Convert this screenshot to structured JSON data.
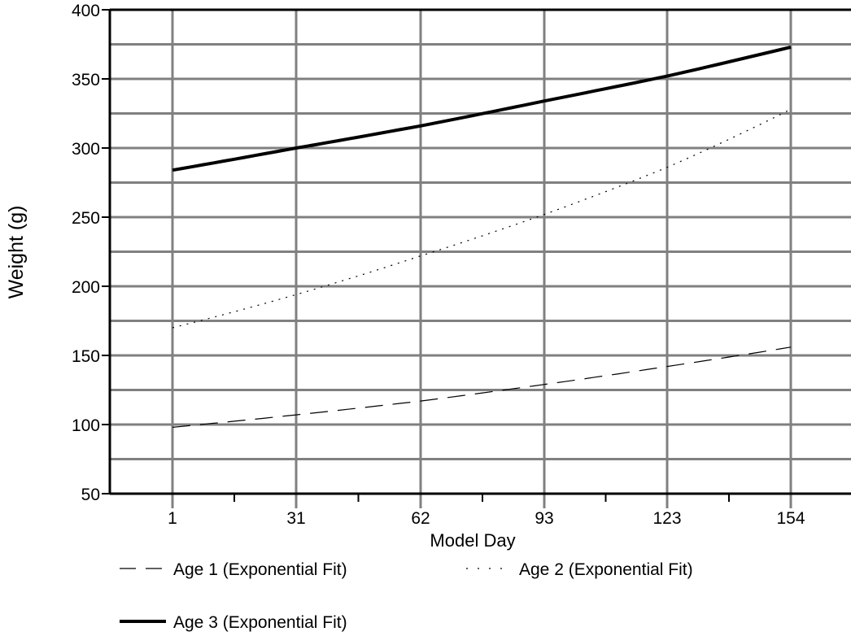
{
  "chart_data": {
    "type": "line",
    "xlabel": "Model Day",
    "ylabel": "Weight (g)",
    "x_ticks": [
      "1",
      "31",
      "62",
      "93",
      "123",
      "154"
    ],
    "x": [
      1,
      31,
      62,
      93,
      123,
      154
    ],
    "ylim": [
      50,
      400
    ],
    "y_ticks": [
      50,
      100,
      150,
      200,
      250,
      300,
      350,
      400
    ],
    "grid": true,
    "legend_position": "bottom",
    "series": [
      {
        "name": "Age 1 (Exponential Fit)",
        "style": "dashed",
        "color": "#000000",
        "values": [
          98,
          107,
          117,
          129,
          142,
          156
        ]
      },
      {
        "name": "Age 2 (Exponential Fit)",
        "style": "dotted",
        "color": "#000000",
        "values": [
          170,
          194,
          222,
          252,
          286,
          328
        ]
      },
      {
        "name": "Age 3 (Exponential Fit)",
        "style": "solid",
        "color": "#000000",
        "values": [
          284,
          300,
          316,
          334,
          352,
          373
        ]
      }
    ]
  },
  "colors": {
    "grid": "#808080",
    "axis": "#000000",
    "background": "#ffffff"
  }
}
